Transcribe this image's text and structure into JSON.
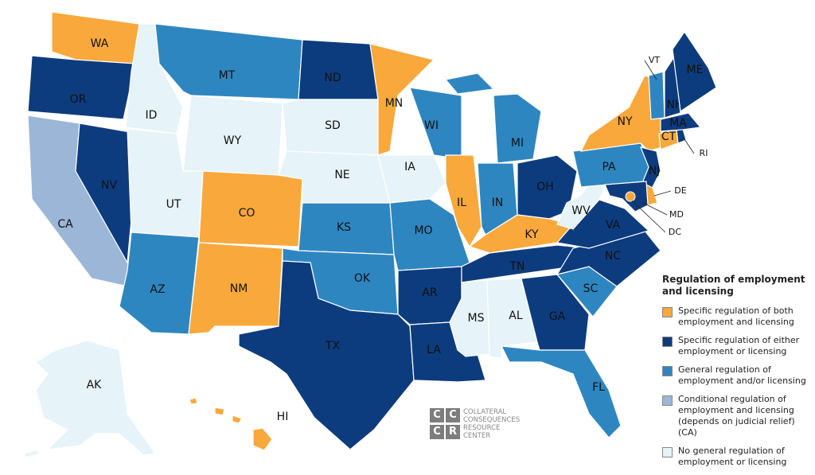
{
  "map": {
    "states": [
      {
        "label": "WA",
        "category": 0
      },
      {
        "label": "OR",
        "category": 1
      },
      {
        "label": "CA",
        "category": 3
      },
      {
        "label": "NV",
        "category": 1
      },
      {
        "label": "ID",
        "category": 4
      },
      {
        "label": "MT",
        "category": 2
      },
      {
        "label": "WY",
        "category": 4
      },
      {
        "label": "UT",
        "category": 4
      },
      {
        "label": "AZ",
        "category": 2
      },
      {
        "label": "CO",
        "category": 0
      },
      {
        "label": "NM",
        "category": 0
      },
      {
        "label": "ND",
        "category": 1
      },
      {
        "label": "SD",
        "category": 4
      },
      {
        "label": "NE",
        "category": 4
      },
      {
        "label": "KS",
        "category": 2
      },
      {
        "label": "OK",
        "category": 2
      },
      {
        "label": "TX",
        "category": 1
      },
      {
        "label": "MN",
        "category": 0
      },
      {
        "label": "IA",
        "category": 4
      },
      {
        "label": "MO",
        "category": 2
      },
      {
        "label": "AR",
        "category": 1
      },
      {
        "label": "LA",
        "category": 1
      },
      {
        "label": "WI",
        "category": 2
      },
      {
        "label": "IL",
        "category": 0
      },
      {
        "label": "MI",
        "category": 2
      },
      {
        "label": "IN",
        "category": 2
      },
      {
        "label": "OH",
        "category": 1
      },
      {
        "label": "KY",
        "category": 0
      },
      {
        "label": "TN",
        "category": 1
      },
      {
        "label": "MS",
        "category": 4
      },
      {
        "label": "AL",
        "category": 4
      },
      {
        "label": "GA",
        "category": 1
      },
      {
        "label": "FL",
        "category": 2
      },
      {
        "label": "SC",
        "category": 2
      },
      {
        "label": "NC",
        "category": 1
      },
      {
        "label": "VA",
        "category": 1
      },
      {
        "label": "WV",
        "category": 4
      },
      {
        "label": "PA",
        "category": 2
      },
      {
        "label": "NY",
        "category": 0
      },
      {
        "label": "NJ",
        "category": 1
      },
      {
        "label": "DE",
        "category": 0
      },
      {
        "label": "MD",
        "category": 1
      },
      {
        "label": "DC",
        "category": 0
      },
      {
        "label": "CT",
        "category": 0
      },
      {
        "label": "RI",
        "category": 1
      },
      {
        "label": "MA",
        "category": 1
      },
      {
        "label": "VT",
        "category": 2
      },
      {
        "label": "NH",
        "category": 1
      },
      {
        "label": "ME",
        "category": 1
      },
      {
        "label": "AK",
        "category": 4
      },
      {
        "label": "HI",
        "category": 0
      }
    ]
  },
  "legend": {
    "title": "Regulation of employment and licensing",
    "items": [
      {
        "label": "Specific regulation of both employment and licensing",
        "color": "#f9a83c"
      },
      {
        "label": "Specific regulation of either employment or licensing",
        "color": "#0d3c7e"
      },
      {
        "label": "General regulation of employment and/or licensing",
        "color": "#2e86c1"
      },
      {
        "label": "Conditional regulation of employment and licensing (depends on judicial relief) (CA)",
        "color": "#9cb6d8"
      },
      {
        "label": "No general regulation of employment or licensing",
        "color": "#e6f3f8"
      }
    ]
  },
  "logo": {
    "letters": [
      "C",
      "C",
      "C",
      "R"
    ],
    "text": "COLLATERAL CONSEQUENCES RESOURCE CENTER"
  }
}
